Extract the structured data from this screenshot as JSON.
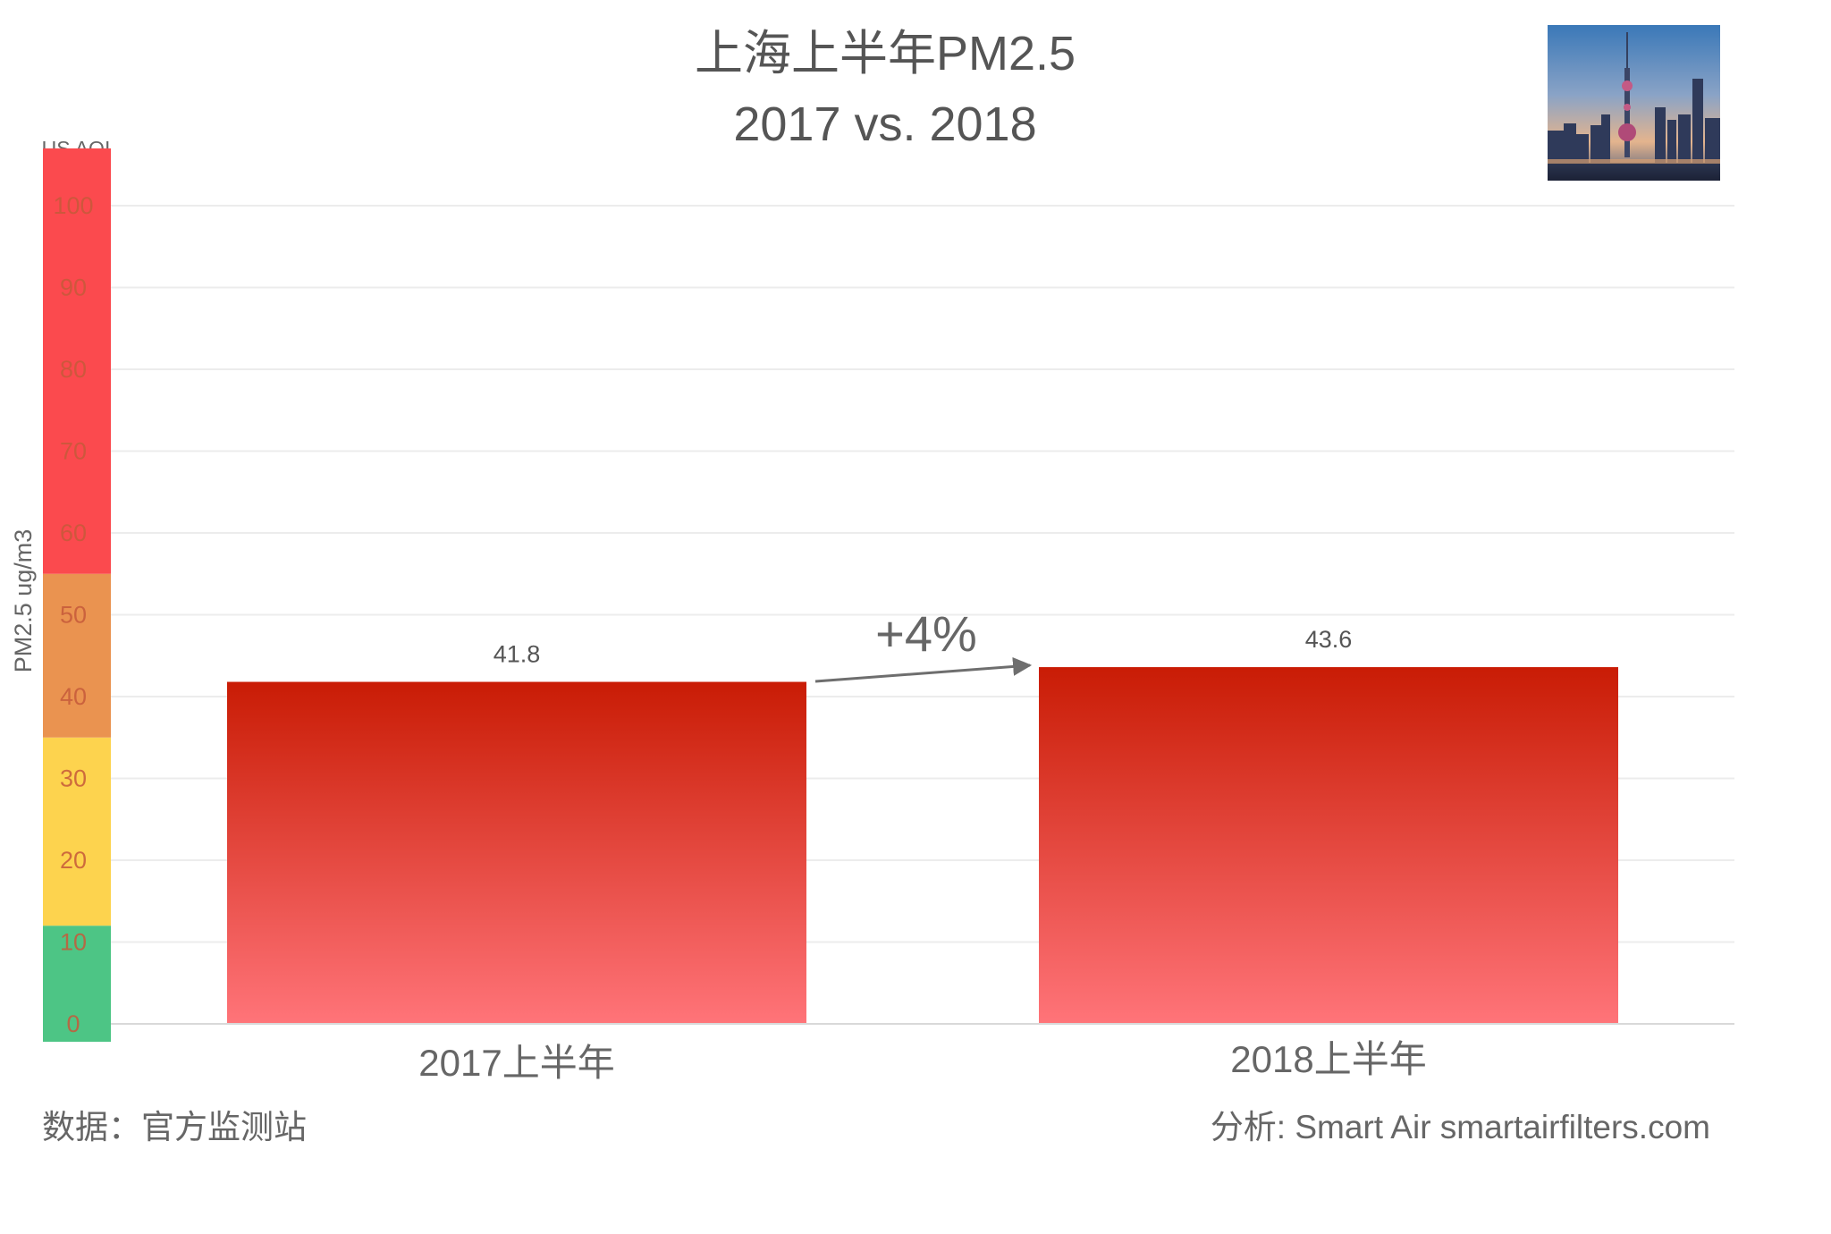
{
  "chart_data": {
    "type": "bar",
    "title": "上海上半年PM2.5",
    "subtitle": "2017 vs. 2018",
    "ylabel": "PM2.5 ug/m3",
    "aqi_label": "US AQI",
    "ylim": [
      0,
      100
    ],
    "yticks": [
      0,
      10,
      20,
      30,
      40,
      50,
      60,
      70,
      80,
      90,
      100
    ],
    "grid": true,
    "categories": [
      "2017上半年",
      "2018上半年"
    ],
    "values": [
      41.8,
      43.6
    ],
    "value_labels": [
      "41.8",
      "43.6"
    ],
    "change_label": "+4%",
    "aqi_bands": [
      {
        "from": 0,
        "to": 12,
        "color": "#4dc585"
      },
      {
        "from": 12,
        "to": 35,
        "color": "#fdd34e"
      },
      {
        "from": 35,
        "to": 55,
        "color": "#ea9350"
      },
      {
        "from": 55,
        "to": 107,
        "color": "#fb4a4e"
      }
    ],
    "bar_colors": {
      "top": "#c91c05",
      "bottom": "#ff7479"
    },
    "source": "数据：官方监测站",
    "credit": "分析: Smart Air smartairfilters.com"
  },
  "photo": {
    "icon": "shanghai-skyline-photo"
  }
}
